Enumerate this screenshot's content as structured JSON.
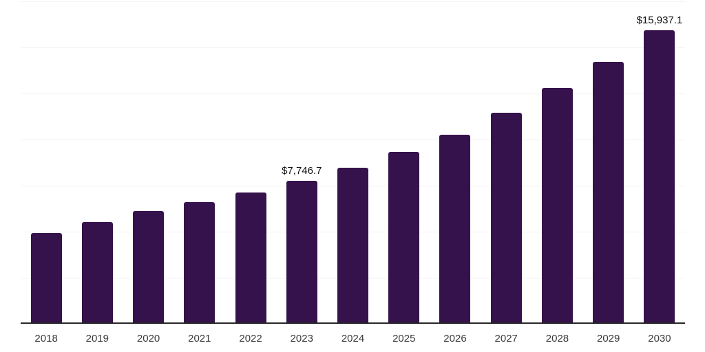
{
  "chart_data": {
    "type": "bar",
    "title": "",
    "xlabel": "",
    "ylabel": "",
    "categories": [
      "2018",
      "2019",
      "2020",
      "2021",
      "2022",
      "2023",
      "2024",
      "2025",
      "2026",
      "2027",
      "2028",
      "2029",
      "2030"
    ],
    "values": [
      4940,
      5530,
      6120,
      6610,
      7110,
      7746.7,
      8460,
      9330,
      10280,
      11440,
      12810,
      14200,
      15937.1
    ],
    "bar_labels": [
      "",
      "",
      "",
      "",
      "",
      "$7,746.7",
      "",
      "",
      "",
      "",
      "",
      "",
      "$15,937.1"
    ],
    "labeled_points": [
      {
        "category": "2023",
        "label": "$7,746.7",
        "value": 7746.7
      },
      {
        "category": "2030",
        "label": "$15,937.1",
        "value": 15937.1
      }
    ],
    "ylim": [
      0,
      17500
    ],
    "gridline_interval": 2500,
    "grid": true,
    "legend": "none",
    "colors": {
      "bar": "#35124B",
      "gridline": "#f2f2f2",
      "axis_line": "#262626",
      "tick_label": "#3a3a3a",
      "data_label": "#111111",
      "background": "#ffffff"
    }
  }
}
